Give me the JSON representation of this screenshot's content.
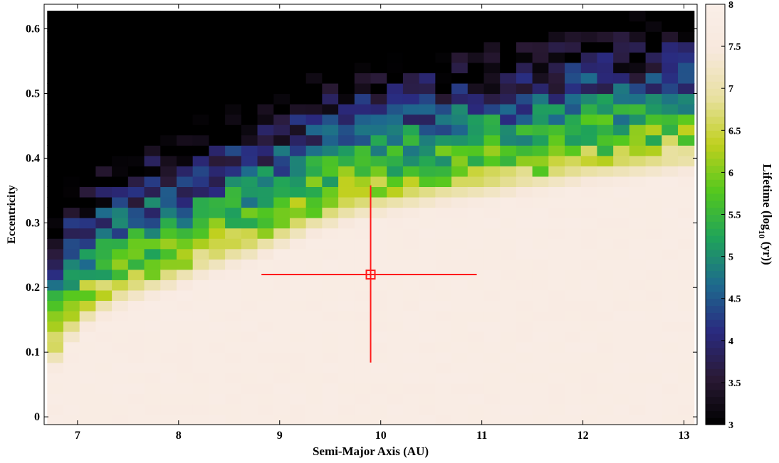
{
  "chart_data": {
    "type": "heatmap",
    "title": "",
    "xlabel": "Semi-Major Axis (AU)",
    "ylabel": "Eccentricity",
    "colorbar_label": {
      "main": "Lifetime (log",
      "sub": "10",
      "tail": " (yr))"
    },
    "xlim": [
      6.67,
      13.13
    ],
    "ylim": [
      -0.012,
      0.638
    ],
    "x_ticks": [
      7,
      8,
      9,
      10,
      11,
      12,
      13
    ],
    "x_tick_labels": [
      "7",
      "8",
      "9",
      "10",
      "11",
      "12",
      "13"
    ],
    "y_ticks": [
      0,
      0.1,
      0.2,
      0.3,
      0.4,
      0.5,
      0.6
    ],
    "y_tick_labels": [
      "0",
      "0.1",
      "0.2",
      "0.3",
      "0.4",
      "0.5",
      "0.6"
    ],
    "color_range": [
      3,
      8
    ],
    "colorbar_ticks": [
      3,
      3.5,
      4,
      4.5,
      5,
      5.5,
      6,
      6.5,
      7,
      7.5,
      8
    ],
    "colorbar_tick_labels": [
      "3",
      "3.5",
      "4",
      "4.5",
      "5",
      "5.5",
      "6",
      "6.5",
      "7",
      "7.5",
      "8"
    ],
    "grid": {
      "a_start": 6.7,
      "a_step": 0.16,
      "n_a": 40,
      "e_start": 0.0,
      "e_step": 0.016,
      "n_e": 40
    },
    "boundary_e_by_a": [
      [
        6.7,
        0.09
      ],
      [
        7.0,
        0.16
      ],
      [
        7.3,
        0.19
      ],
      [
        7.6,
        0.21
      ],
      [
        7.9,
        0.225
      ],
      [
        8.3,
        0.25
      ],
      [
        8.8,
        0.275
      ],
      [
        9.3,
        0.31
      ],
      [
        9.8,
        0.335
      ],
      [
        10.5,
        0.355
      ],
      [
        11.2,
        0.37
      ],
      [
        12.0,
        0.39
      ],
      [
        13.13,
        0.41
      ]
    ],
    "overlay": {
      "marker": {
        "a": 9.9,
        "e": 0.22,
        "shape": "square"
      },
      "x_error": [
        8.82,
        10.95
      ],
      "y_error": [
        0.084,
        0.358
      ],
      "color": "#ff1a1a"
    },
    "colormap_name": "cubehelix-like (black-purple-blue-green-yellow-peach)",
    "colors": {
      "stops": [
        "#000000",
        "#2a1a35",
        "#2a2a80",
        "#1e6a8e",
        "#1fa35a",
        "#54c81e",
        "#c0d01e",
        "#e8e0a0",
        "#f7e8dc",
        "#faeee8"
      ]
    }
  }
}
